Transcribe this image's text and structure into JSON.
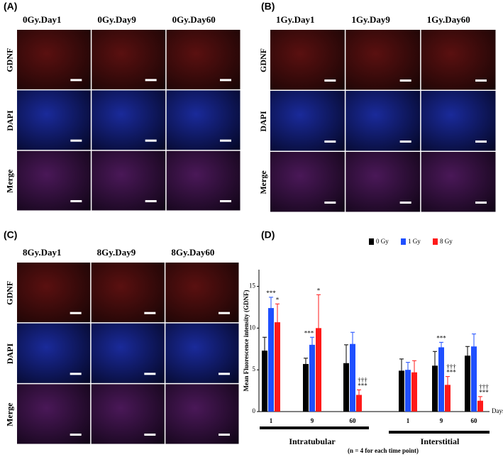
{
  "panels": [
    {
      "label": "(A)",
      "columns": [
        "0Gy.Day1",
        "0Gy.Day9",
        "0Gy.Day60"
      ],
      "rows": [
        "GDNF",
        "DAPI",
        "Merge"
      ]
    },
    {
      "label": "(B)",
      "columns": [
        "1Gy.Day1",
        "1Gy.Day9",
        "1Gy.Day60"
      ],
      "rows": [
        "GDNF",
        "DAPI",
        "Merge"
      ]
    },
    {
      "label": "(C)",
      "columns": [
        "8Gy.Day1",
        "8Gy.Day9",
        "8Gy.Day60"
      ],
      "rows": [
        "GDNF",
        "DAPI",
        "Merge"
      ]
    }
  ],
  "chart_data": {
    "type": "bar",
    "label": "(D)",
    "ylabel": "Mean Fluorescence intensity (GDNF)",
    "xlabel": "Days",
    "categories": [
      "1",
      "9",
      "60",
      "1",
      "9",
      "60"
    ],
    "groups": [
      "Intratubular",
      "Interstitial"
    ],
    "series": [
      {
        "name": "0 Gy",
        "color": "#000000",
        "values": [
          7.3,
          5.7,
          5.8,
          4.9,
          5.5,
          6.7
        ],
        "errors": [
          1.6,
          0.7,
          2.2,
          1.4,
          1.7,
          1.1
        ]
      },
      {
        "name": "1 Gy",
        "color": "#1f4fff",
        "values": [
          12.4,
          8.0,
          8.1,
          5.0,
          7.7,
          7.8
        ],
        "errors": [
          1.3,
          0.9,
          1.4,
          0.9,
          0.6,
          1.5
        ]
      },
      {
        "name": "8 Gy",
        "color": "#ff1a1a",
        "values": [
          10.7,
          10.0,
          2.0,
          4.7,
          3.2,
          1.3
        ],
        "errors": [
          2.2,
          4.0,
          0.6,
          1.4,
          1.0,
          0.5
        ]
      }
    ],
    "ylim": [
      0,
      17
    ],
    "yticks": [
      0,
      5,
      10,
      15
    ],
    "annotations": [
      "***",
      "*",
      "***",
      "*",
      "†††",
      "***",
      "***",
      "†††",
      "***",
      "†††",
      "***"
    ],
    "note": "(n = 4 for each time point)"
  }
}
